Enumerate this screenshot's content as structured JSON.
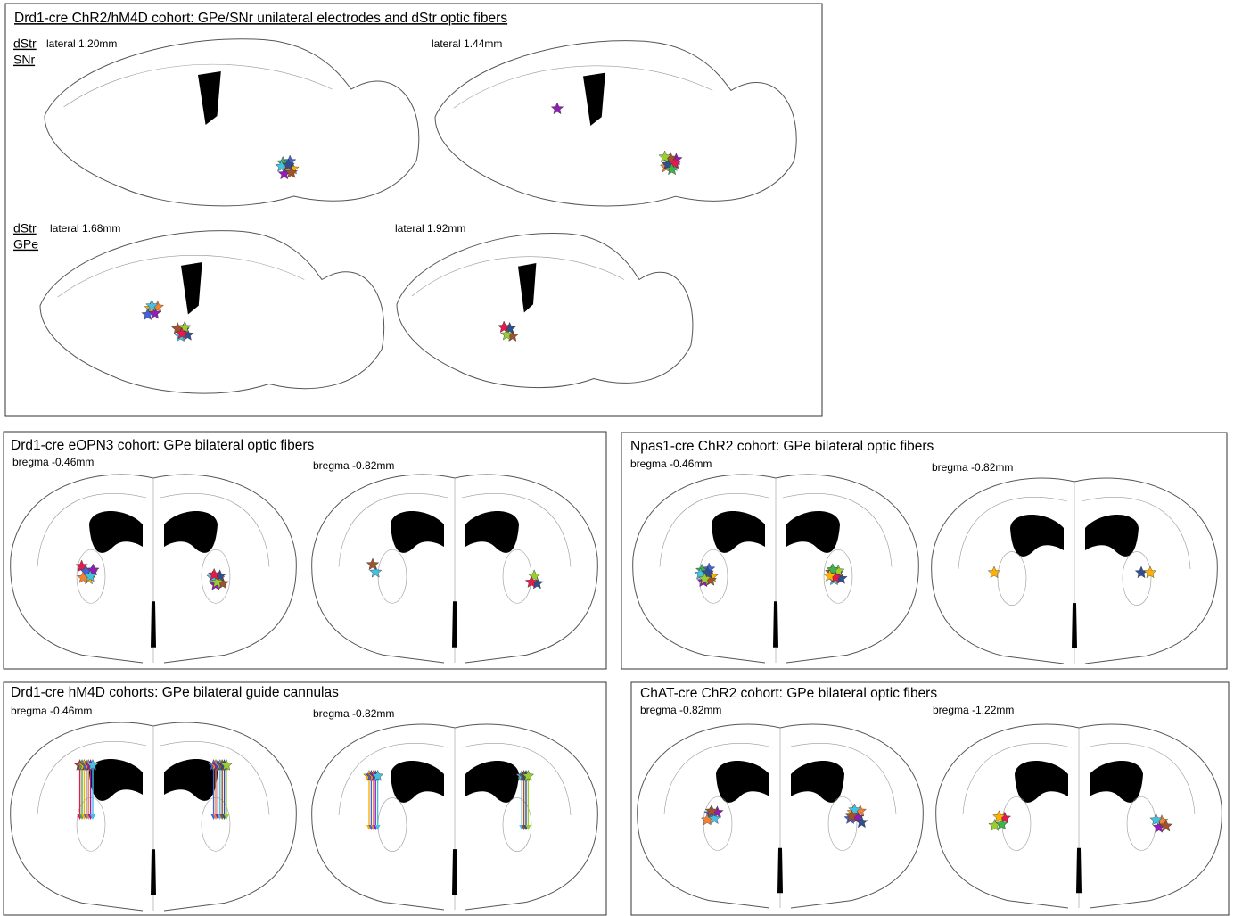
{
  "panels": [
    {
      "title": "Drd1-cre ChR2/hM4D cohort: GPe/SNr unilateral electrodes and dStr optic fibers",
      "region_labels": [
        "dStr",
        "SNr",
        "dStr",
        "GPe"
      ],
      "sections": [
        "lateral 1.20mm",
        "lateral 1.44mm",
        "lateral 1.68mm",
        "lateral 1.92mm"
      ]
    },
    {
      "title": "Drd1-cre eOPN3 cohort: GPe bilateral optic fibers",
      "sections": [
        "bregma -0.46mm",
        "bregma -0.82mm"
      ]
    },
    {
      "title": "Npas1-cre ChR2 cohort: GPe bilateral optic fibers",
      "sections": [
        "bregma -0.46mm",
        "bregma -0.82mm"
      ]
    },
    {
      "title": "Drd1-cre hM4D cohorts: GPe bilateral guide cannulas",
      "sections": [
        "bregma -0.46mm",
        "bregma -0.82mm"
      ]
    },
    {
      "title": "ChAT-cre ChR2 cohort: GPe bilateral optic fibers",
      "sections": [
        "bregma -0.82mm",
        "bregma -1.22mm"
      ]
    }
  ]
}
